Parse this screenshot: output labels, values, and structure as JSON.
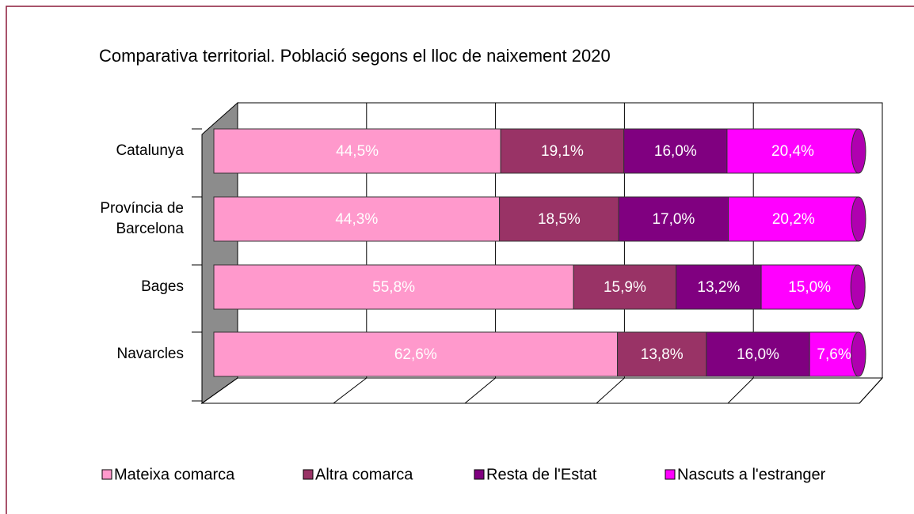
{
  "chart_data": {
    "type": "bar",
    "orientation": "horizontal",
    "stacked": true,
    "title": "Comparativa territorial. Població segons el lloc de naixement 2020",
    "categories": [
      "Catalunya",
      "Província de Barcelona",
      "Bages",
      "Navarcles"
    ],
    "series": [
      {
        "name": "Mateixa comarca",
        "color": "#ff99cc",
        "values": [
          44.5,
          44.3,
          55.8,
          62.6
        ],
        "value_labels": [
          "44,5%",
          "44,3%",
          "55,8%",
          "62,6%"
        ]
      },
      {
        "name": "Altra comarca",
        "color": "#993366",
        "values": [
          19.1,
          18.5,
          15.9,
          13.8
        ],
        "value_labels": [
          "19,1%",
          "18,5%",
          "15,9%",
          "13,8%"
        ]
      },
      {
        "name": "Resta de l'Estat",
        "color": "#800080",
        "values": [
          16.0,
          17.0,
          13.2,
          16.0
        ],
        "value_labels": [
          "16,0%",
          "17,0%",
          "13,2%",
          "16,0%"
        ]
      },
      {
        "name": "Nascuts a l'estranger",
        "color": "#ff00ff",
        "values": [
          20.4,
          20.2,
          15.0,
          7.6
        ],
        "value_labels": [
          "20,4%",
          "20,2%",
          "15,0%",
          "7,6%"
        ]
      }
    ],
    "xlim": [
      0,
      100
    ],
    "xticks": [
      0,
      20,
      40,
      60,
      80,
      100
    ],
    "grid": true,
    "legend": "bottom"
  }
}
